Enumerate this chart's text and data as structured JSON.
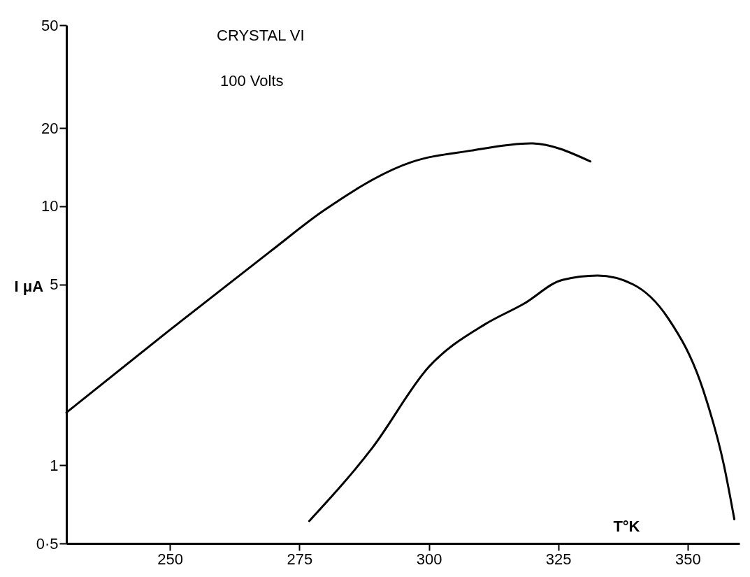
{
  "chart_data": {
    "type": "line",
    "xlabel": "T°K",
    "ylabel": "I μA",
    "log": "y",
    "xlim": [
      230,
      360
    ],
    "xticks": [
      250,
      275,
      300,
      325,
      350
    ],
    "ylim": [
      0.5,
      50
    ],
    "yticks": [
      {
        "value": 0.5,
        "label": "0·5"
      },
      1,
      5,
      10,
      20,
      50
    ],
    "grid": false,
    "marker": "none",
    "line_style": "solid",
    "annotations": [
      "CRYSTAL VI",
      "100 Volts"
    ],
    "series": [
      {
        "color": "#000000",
        "x": [
          230,
          249.7,
          269.4,
          279.6,
          296.6,
          308.1,
          319.7,
          331.2
        ],
        "values": [
          1.6,
          3.3,
          6.7,
          9.6,
          14.8,
          16.4,
          17.5,
          14.9
        ]
      },
      {
        "color": "#000000",
        "x": [
          276.9,
          289.1,
          300,
          310.8,
          318.3,
          325.8,
          332.6,
          339.4,
          346.2,
          353,
          357,
          359
        ],
        "values": [
          0.61,
          1.17,
          2.4,
          3.5,
          4.2,
          5.2,
          5.4,
          5.0,
          3.7,
          1.95,
          1.0,
          0.62
        ]
      }
    ]
  }
}
